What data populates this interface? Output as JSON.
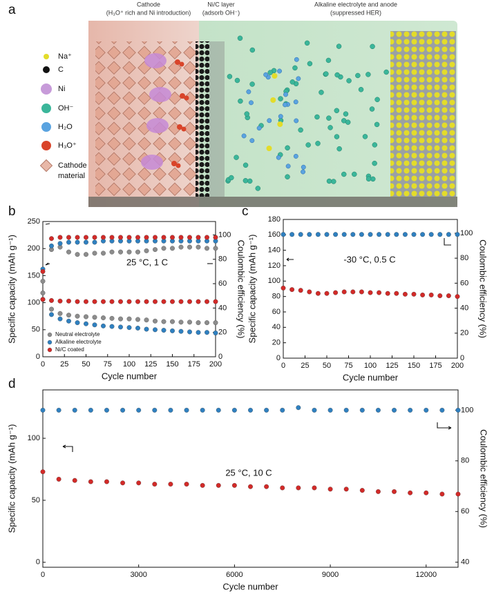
{
  "figure_a": {
    "label": "a",
    "headers": [
      {
        "title": "Cathode",
        "subtitle": "(H₃O⁺ rich and Ni introduction)"
      },
      {
        "title": "Ni/C layer",
        "subtitle": "(adsorb OH⁻)"
      },
      {
        "title": "Alkaline electrolyte and anode",
        "subtitle": "(suppressed HER)"
      }
    ],
    "legend": [
      [
        "Na⁺"
      ],
      [
        "C"
      ],
      [
        "Ni"
      ],
      [
        "OH⁻"
      ],
      [
        "H₂O"
      ],
      [
        "H₃O⁺"
      ],
      [
        "Cathode",
        "material"
      ]
    ]
  },
  "chart_data": [
    {
      "type": "scatter",
      "panel": "b",
      "xlabel": "Cycle number",
      "ylabel": "Specific capacity (mAh g⁻¹)",
      "y2label": "Coulombic efficiency (%)",
      "annotation": "25 °C, 1 C",
      "legend": "lower left",
      "xlim": [
        0,
        200
      ],
      "xticks": [
        0,
        25,
        50,
        75,
        100,
        125,
        150,
        175,
        200
      ],
      "ylim": [
        0,
        250
      ],
      "yticks": [
        0,
        50,
        100,
        150,
        200,
        250
      ],
      "y2lim": [
        0,
        111
      ],
      "y2ticks": [
        0,
        20,
        40,
        60,
        80,
        100
      ],
      "x": [
        0,
        10,
        20,
        30,
        40,
        50,
        60,
        70,
        80,
        90,
        100,
        110,
        120,
        130,
        140,
        150,
        160,
        170,
        180,
        190,
        200
      ],
      "series": [
        {
          "name": "Neutral electrolyte",
          "color": "#8c8c8c",
          "values": [
            118,
            88,
            80,
            77,
            75,
            74,
            73,
            72,
            71,
            70,
            70,
            69,
            68,
            66,
            65,
            65,
            64,
            64,
            63,
            63,
            63
          ]
        },
        {
          "name": "Alkaline electrolyte",
          "color": "#2f80c0",
          "values": [
            106,
            78,
            70,
            66,
            63,
            61,
            59,
            57,
            56,
            55,
            54,
            53,
            51,
            50,
            49,
            48,
            47,
            46,
            45,
            45,
            44
          ]
        },
        {
          "name": "Ni/C coated",
          "color": "#d22a28",
          "values": [
            106,
            104,
            103,
            103,
            102,
            102,
            102,
            102,
            102,
            102,
            102,
            102,
            102,
            102,
            102,
            102,
            102,
            102,
            102,
            102,
            102
          ]
        },
        {
          "color": "#8c8c8c",
          "axis": "y2",
          "values": [
            62,
            88,
            90,
            86,
            84,
            84,
            85,
            85,
            86,
            86,
            86,
            86,
            87,
            88,
            89,
            89,
            90,
            90,
            90,
            89,
            89
          ]
        },
        {
          "color": "#2f80c0",
          "axis": "y2",
          "values": [
            72,
            91,
            93,
            94,
            94,
            94,
            94,
            95,
            95,
            95,
            95,
            95,
            95,
            95,
            95,
            95,
            95,
            95,
            95,
            95,
            95
          ]
        },
        {
          "color": "#d22a28",
          "axis": "y2",
          "values": [
            70,
            97,
            98,
            98,
            98,
            98,
            98,
            98,
            98,
            98,
            98,
            98,
            98,
            98,
            98,
            98,
            98,
            98,
            98,
            98,
            98
          ]
        }
      ]
    },
    {
      "type": "scatter",
      "panel": "c",
      "xlabel": "Cycle number",
      "ylabel": "Specific capacity (mAh g⁻¹)",
      "y2label": "Coulombic efficiency (%)",
      "annotation": "-30 °C, 0.5 C",
      "xlim": [
        0,
        200
      ],
      "xticks": [
        0,
        25,
        50,
        75,
        100,
        125,
        150,
        175,
        200
      ],
      "ylim": [
        0,
        180
      ],
      "yticks": [
        0,
        20,
        40,
        60,
        80,
        100,
        120,
        140,
        160,
        180
      ],
      "y2lim": [
        0,
        111
      ],
      "y2ticks": [
        0,
        20,
        40,
        60,
        80,
        100
      ],
      "x": [
        0,
        10,
        20,
        30,
        40,
        50,
        60,
        70,
        80,
        90,
        100,
        110,
        120,
        130,
        140,
        150,
        160,
        170,
        180,
        190,
        200
      ],
      "series": [
        {
          "color": "#d22a28",
          "values": [
            91,
            89,
            88,
            86,
            84,
            84,
            85,
            86,
            86,
            86,
            85,
            85,
            84,
            84,
            83,
            83,
            82,
            82,
            81,
            81,
            80
          ]
        },
        {
          "color": "#2f80c0",
          "axis": "y2",
          "values": [
            99,
            99,
            99,
            99,
            99,
            99,
            99,
            99,
            99,
            99,
            99,
            99,
            99,
            99,
            99,
            99,
            99,
            99,
            99,
            99,
            99
          ]
        }
      ]
    },
    {
      "type": "scatter",
      "panel": "d",
      "xlabel": "Cycle number",
      "ylabel": "Specific capacity (mAh g⁻¹)",
      "y2label": "Coulombic efficiency (%)",
      "annotation": "25 °C, 10 C",
      "xlim": [
        0,
        13000
      ],
      "xticks": [
        0,
        3000,
        6000,
        9000,
        12000
      ],
      "ylim": [
        -4,
        139
      ],
      "yticks": [
        0,
        50,
        100
      ],
      "y2lim": [
        38,
        108
      ],
      "y2ticks": [
        40,
        60,
        80,
        100
      ],
      "x": [
        0,
        500,
        1000,
        1500,
        2000,
        2500,
        3000,
        3500,
        4000,
        4500,
        5000,
        5500,
        6000,
        6500,
        7000,
        7500,
        8000,
        8500,
        9000,
        9500,
        10000,
        10500,
        11000,
        11500,
        12000,
        12500,
        13000
      ],
      "series": [
        {
          "color": "#d22a28",
          "values": [
            73,
            67,
            66,
            65,
            65,
            64,
            64,
            63,
            63,
            63,
            62,
            62,
            62,
            61,
            61,
            60,
            60,
            60,
            59,
            59,
            58,
            57,
            57,
            56,
            56,
            55,
            55
          ]
        },
        {
          "color": "#2f80c0",
          "axis": "y2",
          "values": [
            100,
            100,
            100,
            100,
            100,
            100,
            100,
            100,
            100,
            100,
            100,
            100,
            100,
            100,
            100,
            100,
            101,
            100,
            100,
            100,
            100,
            100,
            100,
            100,
            100,
            100,
            100
          ]
        }
      ]
    }
  ]
}
